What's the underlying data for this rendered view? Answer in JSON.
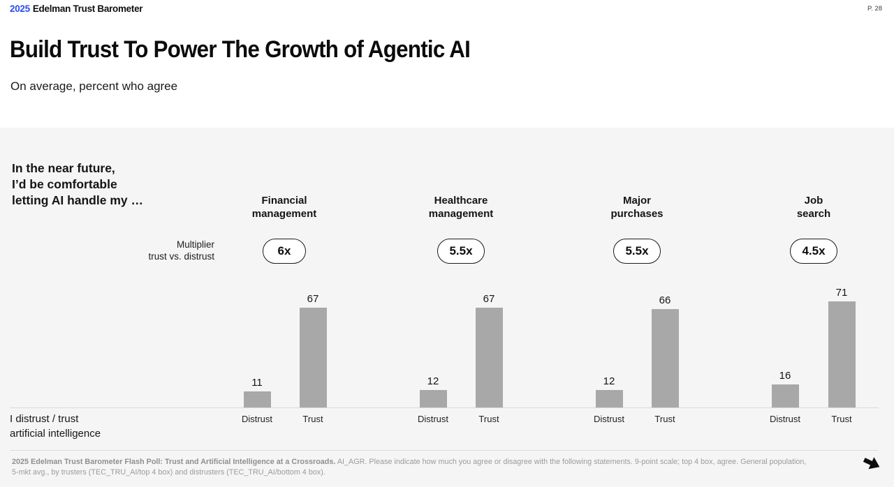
{
  "header": {
    "brand_year": "2025",
    "brand_name": "Edelman Trust Barometer",
    "page_number": "P. 28"
  },
  "title": "Build Trust To Power The Growth of Agentic AI",
  "subtitle": "On average, percent who agree",
  "panel": {
    "intro_lines": [
      "In the near future,",
      "I’d be comfortable",
      "letting AI handle my …"
    ],
    "multiplier_note_lines": [
      "Multiplier",
      "trust vs. distrust"
    ],
    "axis_note_lines": [
      "I distrust / trust",
      "artificial intelligence"
    ]
  },
  "chart_data": {
    "type": "bar",
    "title": "Build Trust To Power The Growth of Agentic AI",
    "subtitle": "On average, percent who agree",
    "categories": [
      "Distrust",
      "Trust"
    ],
    "groups": [
      {
        "name": "Financial management",
        "name_lines": [
          "Financial",
          "management"
        ],
        "multiplier": "6x",
        "distrust": 11,
        "trust": 67
      },
      {
        "name": "Healthcare management",
        "name_lines": [
          "Healthcare",
          "management"
        ],
        "multiplier": "5.5x",
        "distrust": 12,
        "trust": 67
      },
      {
        "name": "Major purchases",
        "name_lines": [
          "Major",
          "purchases"
        ],
        "multiplier": "5.5x",
        "distrust": 12,
        "trust": 66
      },
      {
        "name": "Job search",
        "name_lines": [
          "Job",
          "search"
        ],
        "multiplier": "4.5x",
        "distrust": 16,
        "trust": 71
      }
    ],
    "ylim": [
      0,
      80
    ],
    "grid": false,
    "legend_position": "none",
    "bar_color": "#a8a8a8"
  },
  "footnote": {
    "bold": "2025 Edelman Trust Barometer Flash Poll: Trust and Artificial Intelligence at a Crossroads.",
    "regular": " AI_AGR. Please indicate how much you agree or disagree with the following statements. 9-point scale; top 4 box, agree. General population, 5-mkt avg., by trusters (TEC_TRU_AI/top 4 box) and distrusters (TEC_TRU_AI/bottom 4 box)."
  },
  "colors": {
    "accent_blue": "#2a4cf0",
    "panel_bg": "#f5f5f6",
    "bar": "#a8a8a8",
    "footnote_gray": "#9b9b9b"
  }
}
